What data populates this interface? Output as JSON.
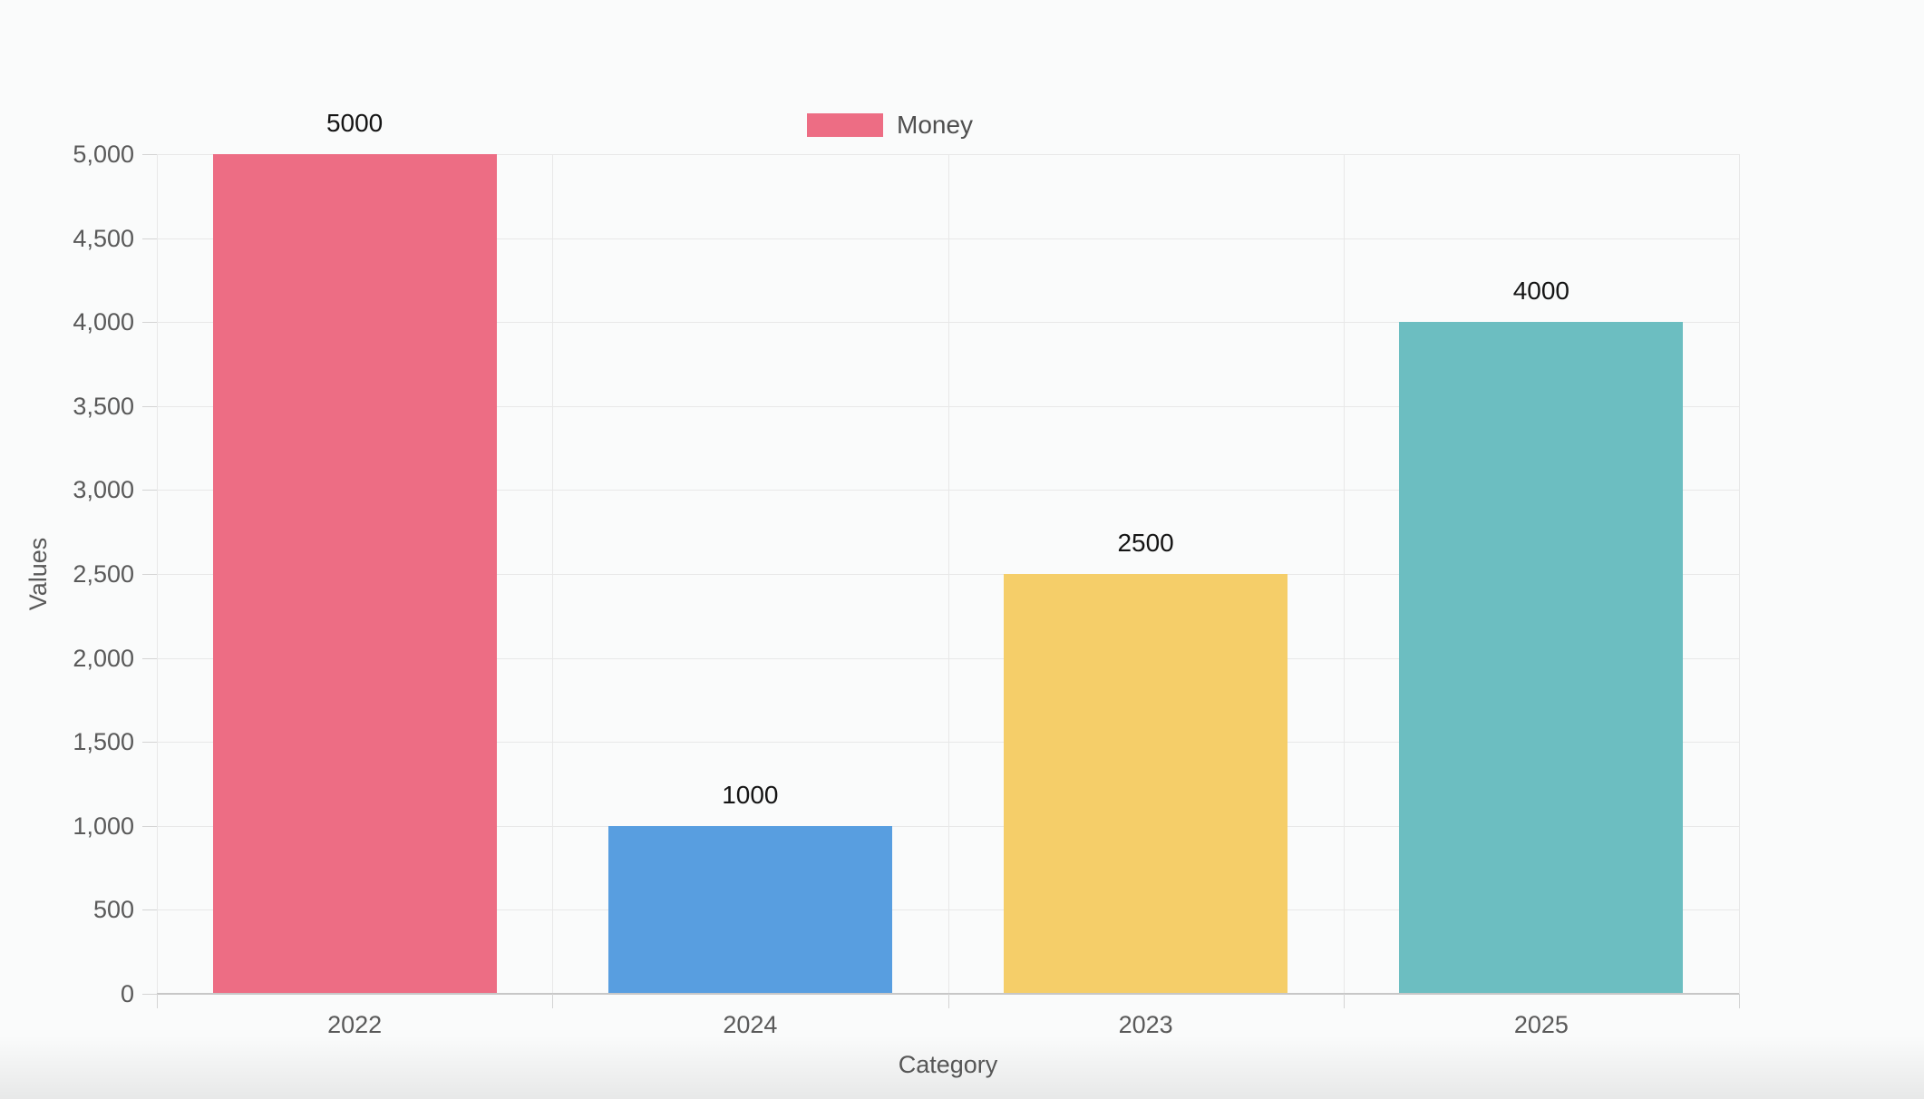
{
  "chart_data": {
    "type": "bar",
    "categories": [
      "2022",
      "2024",
      "2023",
      "2025"
    ],
    "series": [
      {
        "name": "Money",
        "values": [
          5000,
          1000,
          2500,
          4000
        ],
        "data_labels": [
          "5000",
          "1000",
          "2500",
          "4000"
        ]
      }
    ],
    "bar_colors": [
      "#ed6d84",
      "#589ee0",
      "#f5ce69",
      "#6cbec1"
    ],
    "title": "",
    "xlabel": "Category",
    "ylabel": "Values",
    "ylim": [
      0,
      5000
    ],
    "y_tick_step": 500,
    "y_tick_labels": [
      "0",
      "500",
      "1,000",
      "1,500",
      "2,000",
      "2,500",
      "3,000",
      "3,500",
      "4,000",
      "4,500",
      "5,000"
    ],
    "grid": true,
    "legend": {
      "position": "top",
      "entries": [
        {
          "label": "Money",
          "color": "#ed6d84"
        }
      ]
    }
  },
  "colors": {
    "background": "#fafbfb",
    "gridline": "#e8e8e8",
    "axis_line": "#c7c7c7",
    "tick_text": "#595959",
    "data_label_text": "#141414",
    "legend_text": "#4f4f4f"
  }
}
